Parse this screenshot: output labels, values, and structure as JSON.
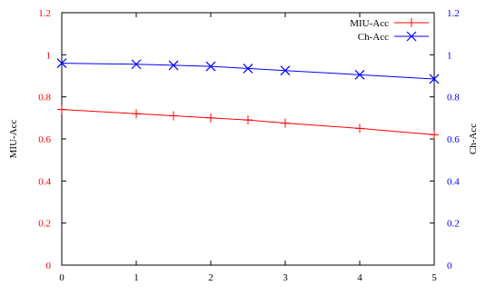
{
  "chart_data": {
    "type": "line",
    "x": [
      0,
      1,
      1.5,
      2,
      2.5,
      3,
      4,
      5
    ],
    "xticks": [
      "0",
      "1",
      "2",
      "3",
      "4",
      "5"
    ],
    "xlim": [
      0,
      5
    ],
    "ylabel": "MIU-Acc",
    "y2label": "Ch-Acc",
    "ylim": [
      0,
      1.2
    ],
    "y2lim": [
      0,
      1.2
    ],
    "yticks": [
      "0",
      "0.2",
      "0.4",
      "0.6",
      "0.8",
      "1",
      "1.2"
    ],
    "y2ticks": [
      "0",
      "0.2",
      "0.4",
      "0.6",
      "0.8",
      "1",
      "1.2"
    ],
    "grid": false,
    "legend_position": "top-right",
    "series": [
      {
        "name": "MIU-Acc",
        "axis": "left",
        "color": "#ff0000",
        "marker": "plus",
        "values": [
          0.74,
          0.72,
          0.71,
          0.7,
          0.69,
          0.675,
          0.65,
          0.62
        ]
      },
      {
        "name": "Ch-Acc",
        "axis": "right",
        "color": "#0000ff",
        "marker": "cross",
        "values": [
          0.96,
          0.955,
          0.95,
          0.945,
          0.935,
          0.925,
          0.905,
          0.885
        ]
      }
    ],
    "left_tick_color": "#ff0000",
    "right_tick_color": "#0000ff"
  }
}
